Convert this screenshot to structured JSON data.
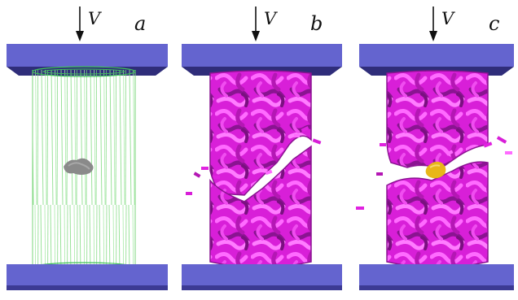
{
  "panels": [
    {
      "letter": "a",
      "arrow_label": "V",
      "state": "mesh-cylinder-with-inclusion"
    },
    {
      "letter": "b",
      "arrow_label": "V",
      "state": "fractured-fiber-cylinder"
    },
    {
      "letter": "c",
      "arrow_label": "V",
      "state": "fractured-fiber-cylinder-with-yellow-inclusion"
    }
  ],
  "colors": {
    "plate_top_face": "#5b59c7",
    "plate_front": "#6666d0",
    "plate_side": "#2f2d7a",
    "plate_bottom_lip": "#3c3a94",
    "mesh": "#8fe08f",
    "mesh_ends": "#3fbf5a",
    "inclusion_grey": "#8a8a8a",
    "fiber": "#e022e0",
    "fiber_dark": "#8a1491",
    "fiber_light": "#ff7dff",
    "inclusion_yellow": "#e8b61a"
  },
  "icons": [
    "down-arrow-icon"
  ]
}
